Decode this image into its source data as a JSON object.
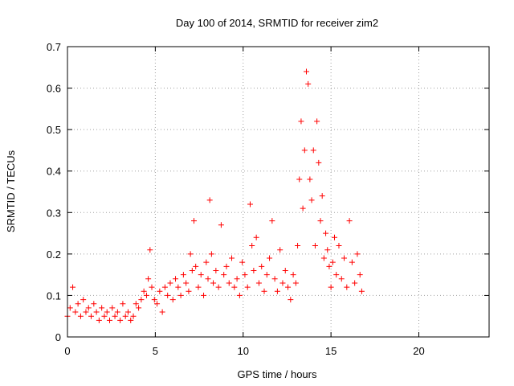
{
  "chart_data": {
    "type": "scatter",
    "title": "Day 100 of 2014, SRMTID for receiver zim2",
    "xlabel": "GPS time / hours",
    "ylabel": "SRMTID / TECUs",
    "xlim": [
      0,
      24
    ],
    "ylim": [
      0,
      0.7
    ],
    "xticks": [
      0,
      5,
      10,
      15,
      20
    ],
    "xtick_labels": [
      "0",
      "5",
      "10",
      "15",
      "20"
    ],
    "yticks": [
      0,
      0.1,
      0.2,
      0.3,
      0.4,
      0.5,
      0.6,
      0.7
    ],
    "ytick_labels": [
      "0",
      "0.1",
      "0.2",
      "0.3",
      "0.4",
      "0.5",
      "0.6",
      "0.7"
    ],
    "grid": true,
    "marker": "+",
    "color": "#ff0000",
    "series": [
      {
        "name": "SRMTID",
        "x": [
          0.0,
          0.15,
          0.3,
          0.45,
          0.6,
          0.75,
          0.9,
          1.05,
          1.2,
          1.35,
          1.5,
          1.65,
          1.8,
          1.95,
          2.1,
          2.25,
          2.4,
          2.55,
          2.7,
          2.85,
          3.0,
          3.15,
          3.3,
          3.45,
          3.6,
          3.75,
          3.9,
          4.05,
          4.2,
          4.35,
          4.5,
          4.6,
          4.7,
          4.8,
          4.95,
          5.1,
          5.25,
          5.4,
          5.55,
          5.7,
          5.85,
          6.0,
          6.15,
          6.3,
          6.45,
          6.6,
          6.75,
          6.9,
          7.0,
          7.1,
          7.2,
          7.3,
          7.45,
          7.6,
          7.75,
          7.9,
          8.0,
          8.1,
          8.2,
          8.3,
          8.45,
          8.6,
          8.75,
          8.9,
          9.05,
          9.2,
          9.35,
          9.5,
          9.65,
          9.8,
          9.95,
          10.1,
          10.25,
          10.4,
          10.5,
          10.6,
          10.75,
          10.9,
          11.05,
          11.2,
          11.35,
          11.5,
          11.65,
          11.8,
          11.95,
          12.1,
          12.25,
          12.4,
          12.55,
          12.7,
          12.85,
          13.0,
          13.1,
          13.2,
          13.3,
          13.4,
          13.5,
          13.6,
          13.7,
          13.8,
          13.9,
          14.0,
          14.1,
          14.2,
          14.3,
          14.4,
          14.5,
          14.6,
          14.7,
          14.8,
          14.9,
          15.0,
          15.1,
          15.2,
          15.3,
          15.45,
          15.6,
          15.75,
          15.9,
          16.05,
          16.2,
          16.35,
          16.5,
          16.65,
          16.75
        ],
        "y": [
          0.05,
          0.07,
          0.12,
          0.06,
          0.08,
          0.05,
          0.09,
          0.06,
          0.07,
          0.05,
          0.08,
          0.06,
          0.04,
          0.07,
          0.05,
          0.06,
          0.04,
          0.07,
          0.05,
          0.06,
          0.04,
          0.08,
          0.05,
          0.06,
          0.04,
          0.05,
          0.08,
          0.07,
          0.09,
          0.11,
          0.1,
          0.14,
          0.21,
          0.12,
          0.09,
          0.08,
          0.11,
          0.06,
          0.12,
          0.1,
          0.13,
          0.09,
          0.14,
          0.12,
          0.1,
          0.15,
          0.13,
          0.11,
          0.2,
          0.16,
          0.28,
          0.17,
          0.12,
          0.15,
          0.1,
          0.18,
          0.14,
          0.33,
          0.2,
          0.13,
          0.16,
          0.12,
          0.27,
          0.15,
          0.17,
          0.13,
          0.19,
          0.12,
          0.14,
          0.1,
          0.18,
          0.15,
          0.12,
          0.32,
          0.22,
          0.16,
          0.24,
          0.13,
          0.17,
          0.11,
          0.15,
          0.19,
          0.28,
          0.14,
          0.11,
          0.21,
          0.13,
          0.16,
          0.12,
          0.09,
          0.15,
          0.13,
          0.22,
          0.38,
          0.52,
          0.31,
          0.45,
          0.64,
          0.61,
          0.38,
          0.33,
          0.45,
          0.22,
          0.52,
          0.42,
          0.28,
          0.34,
          0.19,
          0.25,
          0.21,
          0.17,
          0.12,
          0.18,
          0.24,
          0.15,
          0.22,
          0.14,
          0.19,
          0.12,
          0.28,
          0.18,
          0.13,
          0.2,
          0.15,
          0.11
        ]
      }
    ]
  }
}
